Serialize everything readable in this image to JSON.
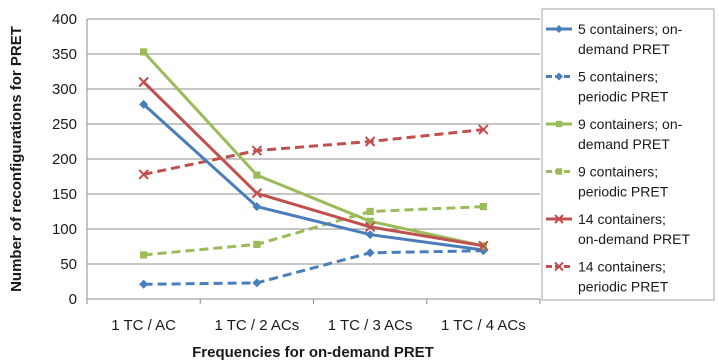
{
  "chart_data": {
    "type": "line",
    "title": "",
    "xlabel": "Frequencies for on-demand PRET",
    "ylabel": "Number of reconfigurations for PRET",
    "categories": [
      "1 TC / AC",
      "1 TC / 2 ACs",
      "1 TC / 3 ACs",
      "1 TC / 4 ACs"
    ],
    "ylim": [
      0,
      400
    ],
    "yticks": [
      "0",
      "50",
      "100",
      "150",
      "200",
      "250",
      "300",
      "350",
      "400"
    ],
    "grid": "horizontal",
    "legend_position": "right",
    "series": [
      {
        "name": "5 containers; on-demand PRET",
        "legend_lines": [
          "5 containers; on-",
          "demand PRET"
        ],
        "color": "#4a7ebb",
        "marker": "diamond",
        "dash": "solid",
        "values": [
          278,
          132,
          92,
          70
        ]
      },
      {
        "name": "5 containers; periodic PRET",
        "legend_lines": [
          "5 containers;",
          "periodic PRET"
        ],
        "color": "#4a7ebb",
        "marker": "diamond",
        "dash": "dashed",
        "values": [
          21,
          23,
          66,
          69
        ]
      },
      {
        "name": "9 containers; on-demand PRET",
        "legend_lines": [
          "9 containers; on-",
          "demand PRET"
        ],
        "color": "#9bbb59",
        "marker": "square",
        "dash": "solid",
        "values": [
          353,
          177,
          111,
          76
        ]
      },
      {
        "name": "9 containers; periodic PRET",
        "legend_lines": [
          "9 containers;",
          "periodic PRET"
        ],
        "color": "#9bbb59",
        "marker": "square",
        "dash": "dashed",
        "values": [
          63,
          78,
          125,
          132
        ]
      },
      {
        "name": "14 containers; on-demand PRET",
        "legend_lines": [
          "14 containers;",
          "on-demand PRET"
        ],
        "color": "#c0504d",
        "marker": "x",
        "dash": "solid",
        "values": [
          310,
          151,
          103,
          76
        ]
      },
      {
        "name": "14 containers; periodic PRET",
        "legend_lines": [
          "14 containers;",
          "periodic PRET"
        ],
        "color": "#c0504d",
        "marker": "x",
        "dash": "dashed",
        "values": [
          178,
          212,
          225,
          242
        ]
      }
    ]
  }
}
